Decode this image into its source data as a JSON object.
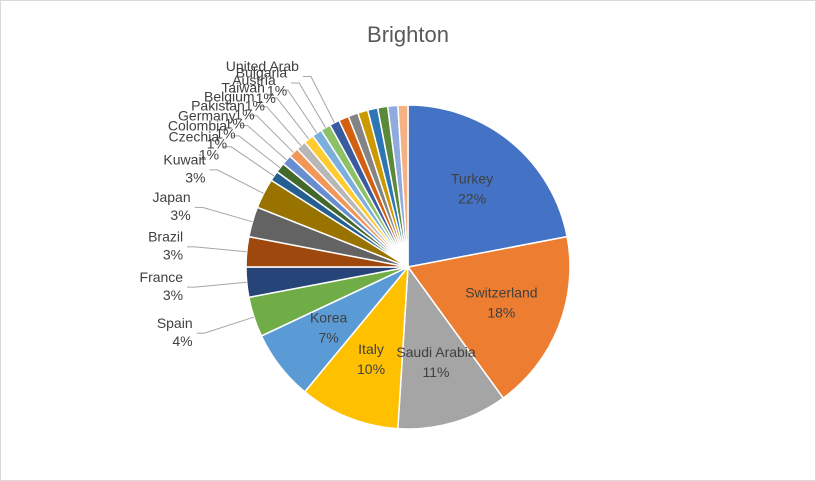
{
  "chart_data": {
    "type": "pie",
    "title": "Brighton",
    "categories": [
      "Turkey",
      "Switzerland",
      "Saudi Arabia",
      "Italy",
      "Korea",
      "Spain",
      "France",
      "Brazil",
      "Japan",
      "Kuwait",
      "Czechia",
      "Colombia",
      "Germany",
      "Pakistan",
      "Belgium",
      "Taiwan",
      "Austria",
      "Bulgaria",
      "United Arab",
      null,
      null,
      null,
      null,
      null,
      null,
      null
    ],
    "values": [
      22,
      18,
      11,
      10,
      7,
      4,
      3,
      3,
      3,
      3,
      1,
      1,
      1,
      1,
      1,
      1,
      1,
      1,
      1,
      1,
      1,
      1,
      1,
      1,
      1,
      1
    ],
    "value_labels": [
      "22%",
      "18%",
      "11%",
      "10%",
      "7%",
      "4%",
      "3%",
      "3%",
      "3%",
      "3%",
      "1%",
      "1%",
      "1%",
      "1%",
      "1%",
      "1%",
      "1%",
      "1%",
      null,
      null,
      null,
      null,
      null,
      null,
      null,
      null
    ],
    "colors": [
      "#4472c4",
      "#ed7d31",
      "#a5a5a5",
      "#ffc000",
      "#5b9bd5",
      "#70ad47",
      "#264478",
      "#9e480e",
      "#636363",
      "#997300",
      "#255e91",
      "#43682b",
      "#698ed0",
      "#f1975a",
      "#b7b7b7",
      "#ffcd33",
      "#7cafdd",
      "#8cc168",
      "#3a5ba0",
      "#d26012",
      "#848484",
      "#cc9a00",
      "#2e75b6",
      "#5a8a39",
      "#8faadc",
      "#f4b183"
    ]
  }
}
